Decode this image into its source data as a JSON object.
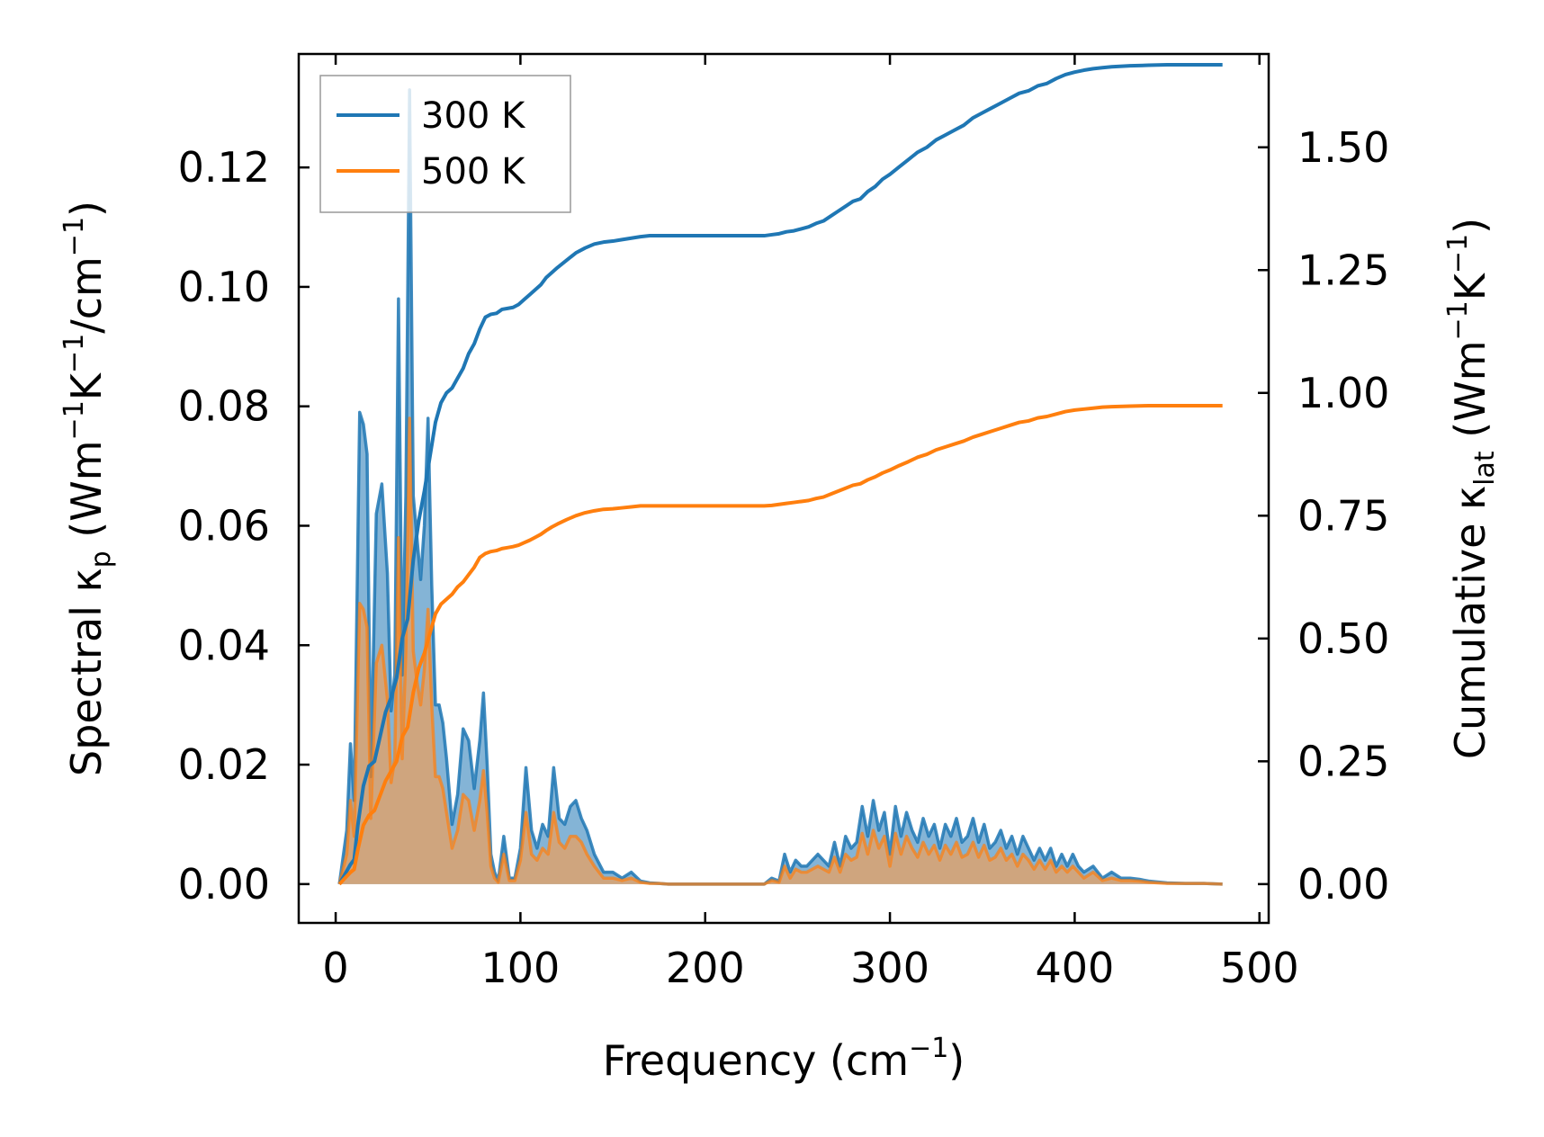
{
  "chart_data": {
    "type": "area",
    "xlabel_main": "Frequency (cm",
    "xlabel_sup": "−1",
    "xlabel_end": ")",
    "ylabel_left": {
      "pre": "Spectral κ",
      "sub": "p",
      "mid1": " (Wm",
      "sup1": "−1",
      "mid2": "K",
      "sup2": "−1",
      "mid3": "/cm",
      "sup3": "−1",
      "end": ")"
    },
    "ylabel_right": {
      "pre": "Cumulative κ",
      "sub": "lat",
      "mid1": " (Wm",
      "sup1": "−1",
      "mid2": "K",
      "sup2": "−1",
      "end": ")"
    },
    "xlim": [
      -20,
      505
    ],
    "ylim_left": [
      -0.0065,
      0.139
    ],
    "ylim_right": [
      -0.079,
      1.69
    ],
    "x_ticks": [
      0,
      100,
      200,
      300,
      400,
      500
    ],
    "x_tick_labels": [
      "0",
      "100",
      "200",
      "300",
      "400",
      "500"
    ],
    "y_left_ticks": [
      0,
      0.02,
      0.04,
      0.06,
      0.08,
      0.1,
      0.12
    ],
    "y_left_tick_labels": [
      "0.00",
      "0.02",
      "0.04",
      "0.06",
      "0.08",
      "0.10",
      "0.12"
    ],
    "y_right_ticks": [
      0,
      0.25,
      0.5,
      0.75,
      1.0,
      1.25,
      1.5
    ],
    "y_right_tick_labels": [
      "0.00",
      "0.25",
      "0.50",
      "0.75",
      "1.00",
      "1.25",
      "1.50"
    ],
    "legend": {
      "position": "top-left",
      "entries": [
        "300 K",
        "500 K"
      ]
    },
    "colors": {
      "300 K": "#1f77b4",
      "500 K": "#ff7f0e",
      "fill_300": "#1f77b4",
      "fill_500": "#e8a060"
    },
    "spectral_x": [
      2,
      6,
      8,
      10,
      13,
      15,
      17,
      19,
      22,
      25,
      28,
      30,
      32,
      34,
      36,
      38,
      40,
      42,
      44,
      46,
      48,
      50,
      52,
      54,
      56,
      58,
      60,
      63,
      66,
      69,
      72,
      75,
      78,
      80,
      82,
      84,
      86,
      88,
      91,
      94,
      97,
      100,
      103,
      106,
      109,
      112,
      115,
      118,
      121,
      124,
      127,
      130,
      133,
      136,
      140,
      145,
      150,
      155,
      160,
      165,
      170,
      175,
      180,
      200,
      220,
      232,
      236,
      240,
      243,
      246,
      249,
      252,
      255,
      258,
      261,
      264,
      267,
      270,
      273,
      276,
      279,
      282,
      285,
      288,
      291,
      294,
      297,
      300,
      303,
      306,
      309,
      312,
      315,
      318,
      321,
      324,
      327,
      330,
      333,
      336,
      339,
      342,
      345,
      348,
      351,
      354,
      357,
      360,
      363,
      366,
      369,
      372,
      375,
      378,
      381,
      384,
      387,
      390,
      393,
      396,
      399,
      402,
      405,
      410,
      415,
      420,
      425,
      430,
      435,
      440,
      450,
      460,
      470,
      480
    ],
    "spectral_300K": [
      0,
      0.009,
      0.0235,
      0.014,
      0.079,
      0.077,
      0.072,
      0.018,
      0.062,
      0.067,
      0.052,
      0.029,
      0.035,
      0.098,
      0.035,
      0.065,
      0.133,
      0.065,
      0.058,
      0.051,
      0.06,
      0.078,
      0.05,
      0.03,
      0.03,
      0.027,
      0.021,
      0.01,
      0.015,
      0.026,
      0.024,
      0.016,
      0.024,
      0.032,
      0.02,
      0.005,
      0.002,
      0.0005,
      0.008,
      0.001,
      0.001,
      0.006,
      0.0195,
      0.009,
      0.006,
      0.01,
      0.008,
      0.0195,
      0.011,
      0.01,
      0.013,
      0.014,
      0.011,
      0.009,
      0.005,
      0.002,
      0.002,
      0.001,
      0.002,
      0.0005,
      0.0002,
      0.0001,
      0,
      0,
      0,
      0,
      0.001,
      0.0005,
      0.005,
      0.002,
      0.004,
      0.003,
      0.003,
      0.004,
      0.005,
      0.004,
      0.003,
      0.007,
      0.003,
      0.008,
      0.006,
      0.007,
      0.013,
      0.008,
      0.014,
      0.009,
      0.012,
      0.005,
      0.013,
      0.008,
      0.012,
      0.009,
      0.007,
      0.011,
      0.008,
      0.01,
      0.006,
      0.01,
      0.008,
      0.011,
      0.007,
      0.008,
      0.011,
      0.007,
      0.01,
      0.006,
      0.007,
      0.009,
      0.006,
      0.008,
      0.005,
      0.008,
      0.006,
      0.004,
      0.006,
      0.004,
      0.006,
      0.003,
      0.005,
      0.003,
      0.005,
      0.003,
      0.002,
      0.003,
      0.001,
      0.002,
      0.001,
      0.001,
      0.0008,
      0.0005,
      0.0002,
      0.0001,
      0.0001,
      0
    ],
    "spectral_500K": [
      0,
      0.005,
      0.014,
      0.008,
      0.047,
      0.046,
      0.043,
      0.011,
      0.037,
      0.04,
      0.031,
      0.017,
      0.021,
      0.058,
      0.021,
      0.039,
      0.078,
      0.039,
      0.034,
      0.03,
      0.036,
      0.046,
      0.03,
      0.018,
      0.018,
      0.016,
      0.012,
      0.006,
      0.009,
      0.015,
      0.014,
      0.009,
      0.014,
      0.019,
      0.012,
      0.003,
      0.001,
      0.0003,
      0.005,
      0.0006,
      0.0006,
      0.004,
      0.012,
      0.005,
      0.004,
      0.006,
      0.005,
      0.012,
      0.007,
      0.006,
      0.008,
      0.008,
      0.007,
      0.005,
      0.003,
      0.001,
      0.001,
      0.0006,
      0.001,
      0.0003,
      0.0001,
      0.0001,
      0,
      0,
      0,
      0,
      0.0006,
      0.0003,
      0.003,
      0.001,
      0.0025,
      0.002,
      0.002,
      0.0025,
      0.003,
      0.0025,
      0.002,
      0.0045,
      0.002,
      0.005,
      0.004,
      0.0045,
      0.0085,
      0.005,
      0.009,
      0.006,
      0.008,
      0.003,
      0.0085,
      0.005,
      0.008,
      0.006,
      0.0045,
      0.007,
      0.005,
      0.0065,
      0.004,
      0.0065,
      0.005,
      0.007,
      0.0045,
      0.005,
      0.007,
      0.0045,
      0.0065,
      0.004,
      0.0045,
      0.006,
      0.004,
      0.005,
      0.003,
      0.005,
      0.004,
      0.0025,
      0.004,
      0.0025,
      0.004,
      0.002,
      0.003,
      0.002,
      0.003,
      0.002,
      0.001,
      0.002,
      0.0006,
      0.001,
      0.0006,
      0.0006,
      0.0005,
      0.0003,
      0.0001,
      0.0001,
      0.0001,
      0
    ],
    "cumulative_x": [
      2,
      5,
      8,
      10,
      12,
      15,
      18,
      21,
      24,
      27,
      30,
      33,
      36,
      39,
      42,
      45,
      48,
      51,
      54,
      57,
      60,
      63,
      66,
      69,
      72,
      75,
      78,
      81,
      84,
      87,
      90,
      93,
      96,
      99,
      102,
      105,
      108,
      111,
      114,
      117,
      120,
      125,
      130,
      135,
      140,
      145,
      150,
      155,
      160,
      165,
      170,
      180,
      200,
      220,
      232,
      236,
      240,
      244,
      248,
      252,
      256,
      260,
      264,
      268,
      272,
      276,
      280,
      284,
      288,
      292,
      296,
      300,
      305,
      310,
      315,
      320,
      325,
      330,
      335,
      340,
      345,
      350,
      355,
      360,
      365,
      370,
      375,
      380,
      385,
      390,
      395,
      400,
      405,
      410,
      415,
      420,
      430,
      440,
      450,
      460,
      470,
      480
    ],
    "cumulative_300K": [
      0,
      0.02,
      0.04,
      0.05,
      0.12,
      0.2,
      0.24,
      0.25,
      0.3,
      0.35,
      0.38,
      0.42,
      0.5,
      0.54,
      0.66,
      0.74,
      0.8,
      0.87,
      0.94,
      0.98,
      1.0,
      1.01,
      1.03,
      1.05,
      1.08,
      1.1,
      1.13,
      1.154,
      1.16,
      1.162,
      1.17,
      1.172,
      1.174,
      1.18,
      1.19,
      1.2,
      1.21,
      1.22,
      1.235,
      1.245,
      1.255,
      1.27,
      1.285,
      1.295,
      1.303,
      1.307,
      1.309,
      1.312,
      1.315,
      1.318,
      1.32,
      1.32,
      1.32,
      1.32,
      1.32,
      1.322,
      1.324,
      1.328,
      1.33,
      1.334,
      1.338,
      1.345,
      1.35,
      1.36,
      1.37,
      1.38,
      1.39,
      1.395,
      1.41,
      1.42,
      1.435,
      1.445,
      1.46,
      1.475,
      1.49,
      1.5,
      1.515,
      1.525,
      1.535,
      1.545,
      1.56,
      1.57,
      1.58,
      1.59,
      1.6,
      1.61,
      1.615,
      1.625,
      1.63,
      1.64,
      1.648,
      1.653,
      1.657,
      1.66,
      1.662,
      1.664,
      1.666,
      1.667,
      1.668,
      1.668,
      1.668,
      1.668
    ],
    "cumulative_500K": [
      0,
      0.012,
      0.024,
      0.03,
      0.07,
      0.12,
      0.14,
      0.15,
      0.18,
      0.21,
      0.23,
      0.25,
      0.3,
      0.32,
      0.39,
      0.44,
      0.47,
      0.51,
      0.55,
      0.57,
      0.58,
      0.59,
      0.605,
      0.615,
      0.63,
      0.645,
      0.665,
      0.673,
      0.677,
      0.679,
      0.683,
      0.685,
      0.687,
      0.69,
      0.695,
      0.7,
      0.706,
      0.712,
      0.72,
      0.727,
      0.733,
      0.742,
      0.75,
      0.756,
      0.76,
      0.763,
      0.764,
      0.766,
      0.768,
      0.77,
      0.77,
      0.77,
      0.77,
      0.77,
      0.77,
      0.771,
      0.773,
      0.775,
      0.777,
      0.779,
      0.781,
      0.785,
      0.788,
      0.794,
      0.8,
      0.806,
      0.812,
      0.815,
      0.823,
      0.829,
      0.837,
      0.843,
      0.852,
      0.86,
      0.869,
      0.875,
      0.884,
      0.89,
      0.896,
      0.902,
      0.91,
      0.916,
      0.922,
      0.928,
      0.934,
      0.94,
      0.943,
      0.949,
      0.952,
      0.957,
      0.962,
      0.965,
      0.967,
      0.969,
      0.971,
      0.972,
      0.973,
      0.974,
      0.974,
      0.974,
      0.974,
      0.974
    ]
  }
}
